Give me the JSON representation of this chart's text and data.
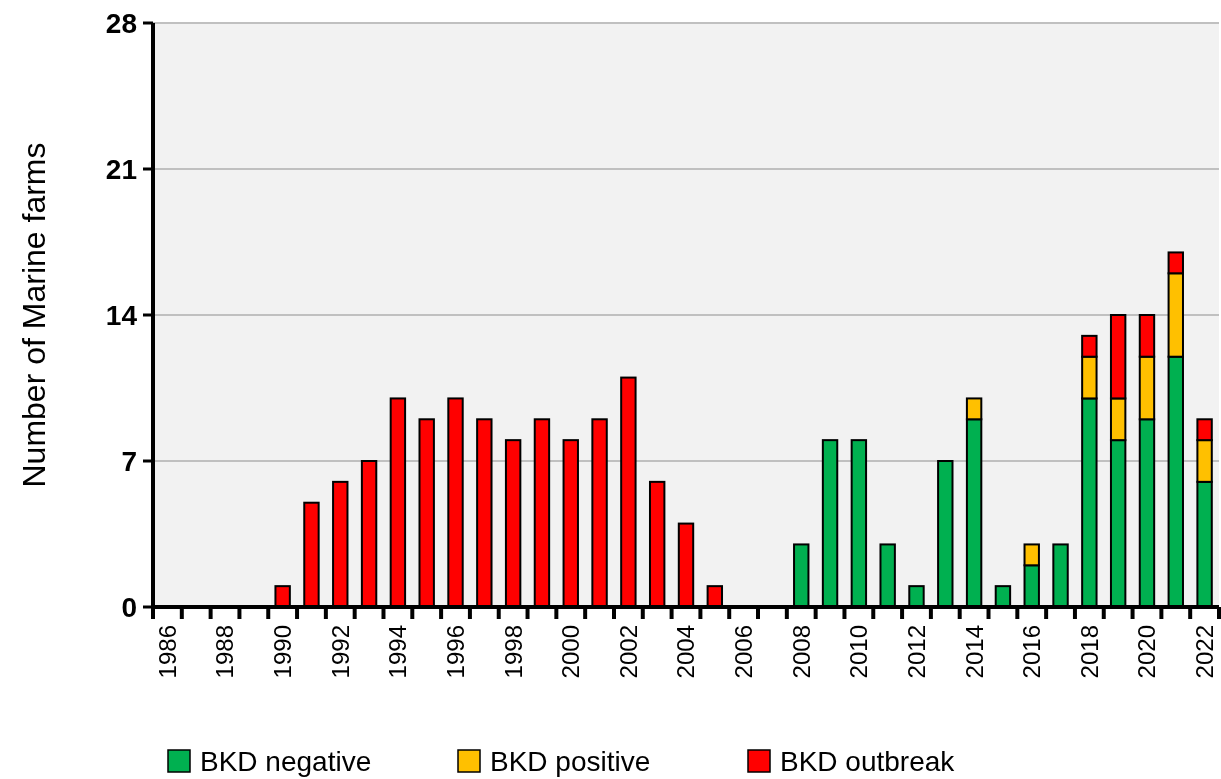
{
  "chart_data": {
    "type": "bar",
    "stacked": true,
    "ylabel": "Number of Marine farms",
    "categories": [
      "1986",
      null,
      "1988",
      null,
      "1990",
      null,
      "1992",
      null,
      "1994",
      null,
      "1996",
      null,
      "1998",
      null,
      "2000",
      null,
      "2002",
      null,
      "2004",
      null,
      "2006",
      null,
      "2008",
      null,
      "2010",
      null,
      "2012",
      null,
      "2014",
      null,
      "2016",
      null,
      "2018",
      null,
      "2020",
      null,
      "2022"
    ],
    "series": [
      {
        "name": "BKD negative",
        "color": "#00b050",
        "values": [
          0,
          0,
          0,
          0,
          0,
          0,
          0,
          0,
          0,
          0,
          0,
          0,
          0,
          0,
          0,
          0,
          0,
          0,
          0,
          0,
          0,
          0,
          3,
          8,
          8,
          3,
          1,
          7,
          9,
          1,
          2,
          3,
          10,
          8,
          9,
          12,
          6
        ]
      },
      {
        "name": "BKD positive",
        "color": "#ffc000",
        "values": [
          0,
          0,
          0,
          0,
          0,
          0,
          0,
          0,
          0,
          0,
          0,
          0,
          0,
          0,
          0,
          0,
          0,
          0,
          0,
          0,
          0,
          0,
          0,
          0,
          0,
          0,
          0,
          0,
          1,
          0,
          1,
          0,
          2,
          2,
          3,
          4,
          2
        ]
      },
      {
        "name": "BKD outbreak",
        "color": "#ff0000",
        "values": [
          0,
          0,
          0,
          0,
          1,
          5,
          6,
          7,
          10,
          9,
          10,
          9,
          8,
          9,
          8,
          9,
          11,
          6,
          4,
          1,
          0,
          0,
          0,
          0,
          0,
          0,
          0,
          0,
          0,
          0,
          0,
          0,
          1,
          4,
          2,
          1,
          1
        ]
      }
    ],
    "ylim": [
      0,
      28
    ],
    "yticks": [
      0,
      7,
      14,
      21,
      28
    ],
    "grid": "y",
    "legend": "bottom"
  }
}
